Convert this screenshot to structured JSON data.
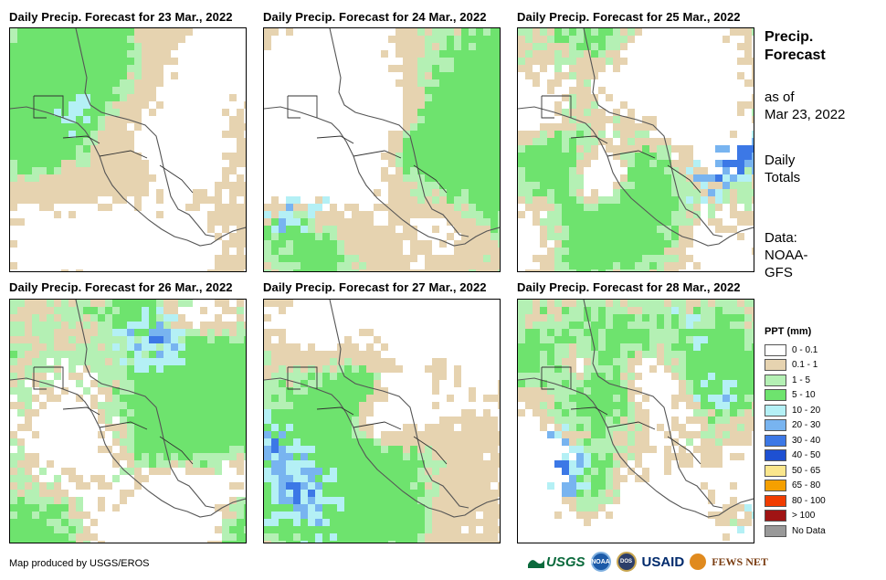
{
  "panels": [
    {
      "title": "Daily Precip. Forecast for 23 Mar., 2022",
      "seed": 11,
      "green": 0.26,
      "tan": 0.26,
      "blue": 0.01
    },
    {
      "title": "Daily Precip. Forecast for 24 Mar., 2022",
      "seed": 23,
      "green": 0.36,
      "tan": 0.24,
      "blue": 0.04
    },
    {
      "title": "Daily Precip. Forecast for 25 Mar., 2022",
      "seed": 37,
      "green": 0.36,
      "tan": 0.24,
      "blue": 0.05
    },
    {
      "title": "Daily Precip. Forecast for 26 Mar., 2022",
      "seed": 41,
      "green": 0.52,
      "tan": 0.18,
      "blue": 0.04
    },
    {
      "title": "Daily Precip. Forecast for 27 Mar., 2022",
      "seed": 53,
      "green": 0.42,
      "tan": 0.26,
      "blue": 0.08
    },
    {
      "title": "Daily Precip. Forecast for 28 Mar., 2022",
      "seed": 67,
      "green": 0.44,
      "tan": 0.2,
      "blue": 0.1
    }
  ],
  "side": {
    "title": "Precip. Forecast",
    "as_of_label": "as of",
    "as_of_date": "Mar 23, 2022",
    "totals": "Daily Totals",
    "data_label": "Data:",
    "data_source": "NOAA-GFS"
  },
  "legend": {
    "title": "PPT (mm)",
    "items": [
      {
        "label": "0 - 0.1",
        "color": "#ffffff"
      },
      {
        "label": "0.1 - 1",
        "color": "#e6d3b0"
      },
      {
        "label": "1 - 5",
        "color": "#b4f0b4"
      },
      {
        "label": "5 - 10",
        "color": "#6ee36e"
      },
      {
        "label": "10 - 20",
        "color": "#b4f0f5"
      },
      {
        "label": "20 - 30",
        "color": "#78b4f0"
      },
      {
        "label": "30 - 40",
        "color": "#3c78e6"
      },
      {
        "label": "40 - 50",
        "color": "#1e50d2"
      },
      {
        "label": "50 - 65",
        "color": "#fae68c"
      },
      {
        "label": "65 - 80",
        "color": "#f5a000"
      },
      {
        "label": "80 - 100",
        "color": "#f03c00"
      },
      {
        "label": "> 100",
        "color": "#a01414"
      },
      {
        "label": "No Data",
        "color": "#999999"
      }
    ]
  },
  "footer": {
    "credit": "Map produced by USGS/EROS",
    "logos": {
      "usgs": "USGS",
      "noaa": "NOAA",
      "dos": "DOS",
      "usaid": "USAID",
      "fews": "FEWS NET"
    }
  }
}
